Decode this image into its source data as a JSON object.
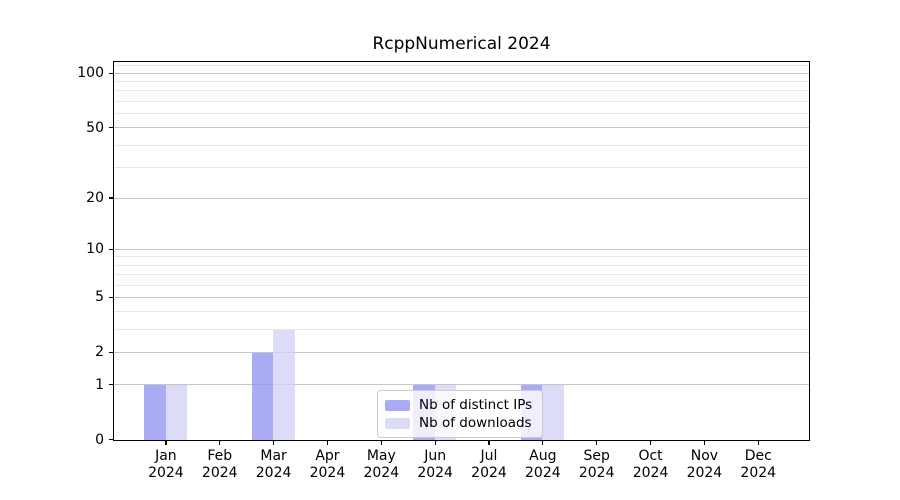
{
  "chart_data": {
    "type": "bar",
    "title": "RcppNumerical 2024",
    "categories": [
      "Jan 2024",
      "Feb 2024",
      "Mar 2024",
      "Apr 2024",
      "May 2024",
      "Jun 2024",
      "Jul 2024",
      "Aug 2024",
      "Sep 2024",
      "Oct 2024",
      "Nov 2024",
      "Dec 2024"
    ],
    "series": [
      {
        "name": "Nb of distinct IPs",
        "color": "#8E8EF2",
        "opacity": 0.75,
        "values": [
          1,
          0,
          2,
          0,
          0,
          1,
          0,
          1,
          0,
          0,
          0,
          0
        ]
      },
      {
        "name": "Nb of downloads",
        "color": "#D0D0F6",
        "opacity": 0.75,
        "values": [
          1,
          0,
          3,
          0,
          0,
          1,
          0,
          1,
          0,
          0,
          0,
          0
        ]
      }
    ],
    "xlabel": "",
    "ylabel": "",
    "y_scale": "log1p",
    "ylim": [
      0,
      115
    ],
    "y_axis_ticks": [
      0,
      1,
      2,
      5,
      10,
      20,
      50,
      100
    ],
    "y_minor_gridlines": [
      3,
      4,
      6,
      7,
      8,
      9,
      30,
      40,
      60,
      70,
      80,
      90,
      110
    ],
    "grid": "on",
    "legend_position": "lower center (inside plot)",
    "colors": {
      "background": "#ffffff",
      "grid_major": "#c6c6c6",
      "grid_minor": "#e8e8e8",
      "spine": "#000000",
      "legend_border": "#cccccc",
      "text": "#000000"
    }
  }
}
